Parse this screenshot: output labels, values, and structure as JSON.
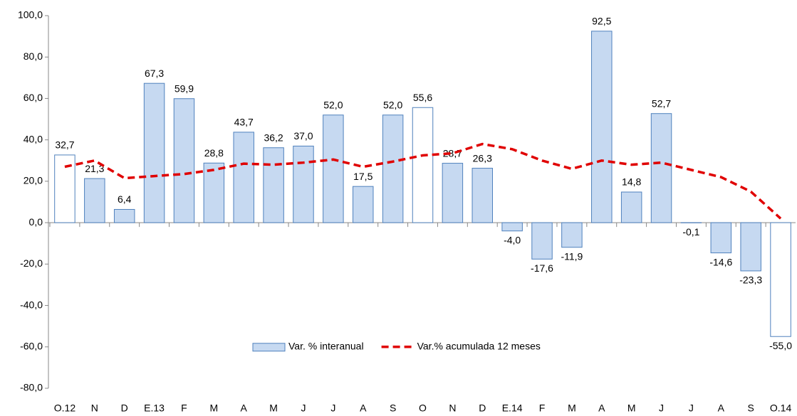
{
  "chart_data": {
    "type": "bar",
    "categories": [
      "O.12",
      "N",
      "D",
      "E.13",
      "F",
      "M",
      "A",
      "M",
      "J",
      "J",
      "A",
      "S",
      "O",
      "N",
      "D",
      "E.14",
      "F",
      "M",
      "A",
      "M",
      "J",
      "J",
      "A",
      "S",
      "O.14"
    ],
    "series": [
      {
        "name": "Var. % interanual",
        "type": "bar",
        "color": "#c6d9f1",
        "edge_color": "#4f81bd",
        "colors": [
          "#ffffff",
          "#c6d9f1",
          "#c6d9f1",
          "#c6d9f1",
          "#c6d9f1",
          "#c6d9f1",
          "#c6d9f1",
          "#c6d9f1",
          "#c6d9f1",
          "#c6d9f1",
          "#c6d9f1",
          "#c6d9f1",
          "#ffffff",
          "#c6d9f1",
          "#c6d9f1",
          "#c6d9f1",
          "#c6d9f1",
          "#c6d9f1",
          "#c6d9f1",
          "#c6d9f1",
          "#c6d9f1",
          "#c6d9f1",
          "#c6d9f1",
          "#c6d9f1",
          "#ffffff"
        ],
        "values": [
          32.7,
          21.3,
          6.4,
          67.3,
          59.9,
          28.8,
          43.7,
          36.2,
          37.0,
          52.0,
          17.5,
          52.0,
          55.6,
          28.7,
          26.3,
          -4.0,
          -17.6,
          -11.9,
          92.5,
          14.8,
          52.7,
          -0.1,
          -14.6,
          -23.3,
          -55.0
        ],
        "value_labels": [
          "32,7",
          "21,3",
          "6,4",
          "67,3",
          "59,9",
          "28,8",
          "43,7",
          "36,2",
          "37,0",
          "52,0",
          "17,5",
          "52,0",
          "55,6",
          "28,7",
          "26,3",
          "-4,0",
          "-17,6",
          "-11,9",
          "92,5",
          "14,8",
          "52,7",
          "-0,1",
          "-14,6",
          "-23,3",
          "-55,0"
        ]
      },
      {
        "name": "Var.% acumulada 12 meses",
        "type": "line",
        "color": "#e00000",
        "dashed": true,
        "values": [
          27,
          30,
          21.5,
          22.5,
          23.5,
          25.5,
          28.5,
          28,
          29,
          30.5,
          27,
          29.5,
          32.5,
          33.5,
          38,
          35.5,
          30,
          26,
          30,
          28,
          29,
          25.5,
          22,
          15,
          2
        ]
      }
    ],
    "ylim": [
      -80,
      100
    ],
    "yticks": [
      {
        "value": -80,
        "label": "-80,0"
      },
      {
        "value": -60,
        "label": "-60,0"
      },
      {
        "value": -40,
        "label": "-40,0"
      },
      {
        "value": -20,
        "label": "-20,0"
      },
      {
        "value": 0,
        "label": "0,0"
      },
      {
        "value": 20,
        "label": "20,0"
      },
      {
        "value": 40,
        "label": "40,0"
      },
      {
        "value": 60,
        "label": "60,0"
      },
      {
        "value": 80,
        "label": "80,0"
      },
      {
        "value": 100,
        "label": "100,0"
      }
    ],
    "grid": false,
    "legend": "lower-center"
  }
}
